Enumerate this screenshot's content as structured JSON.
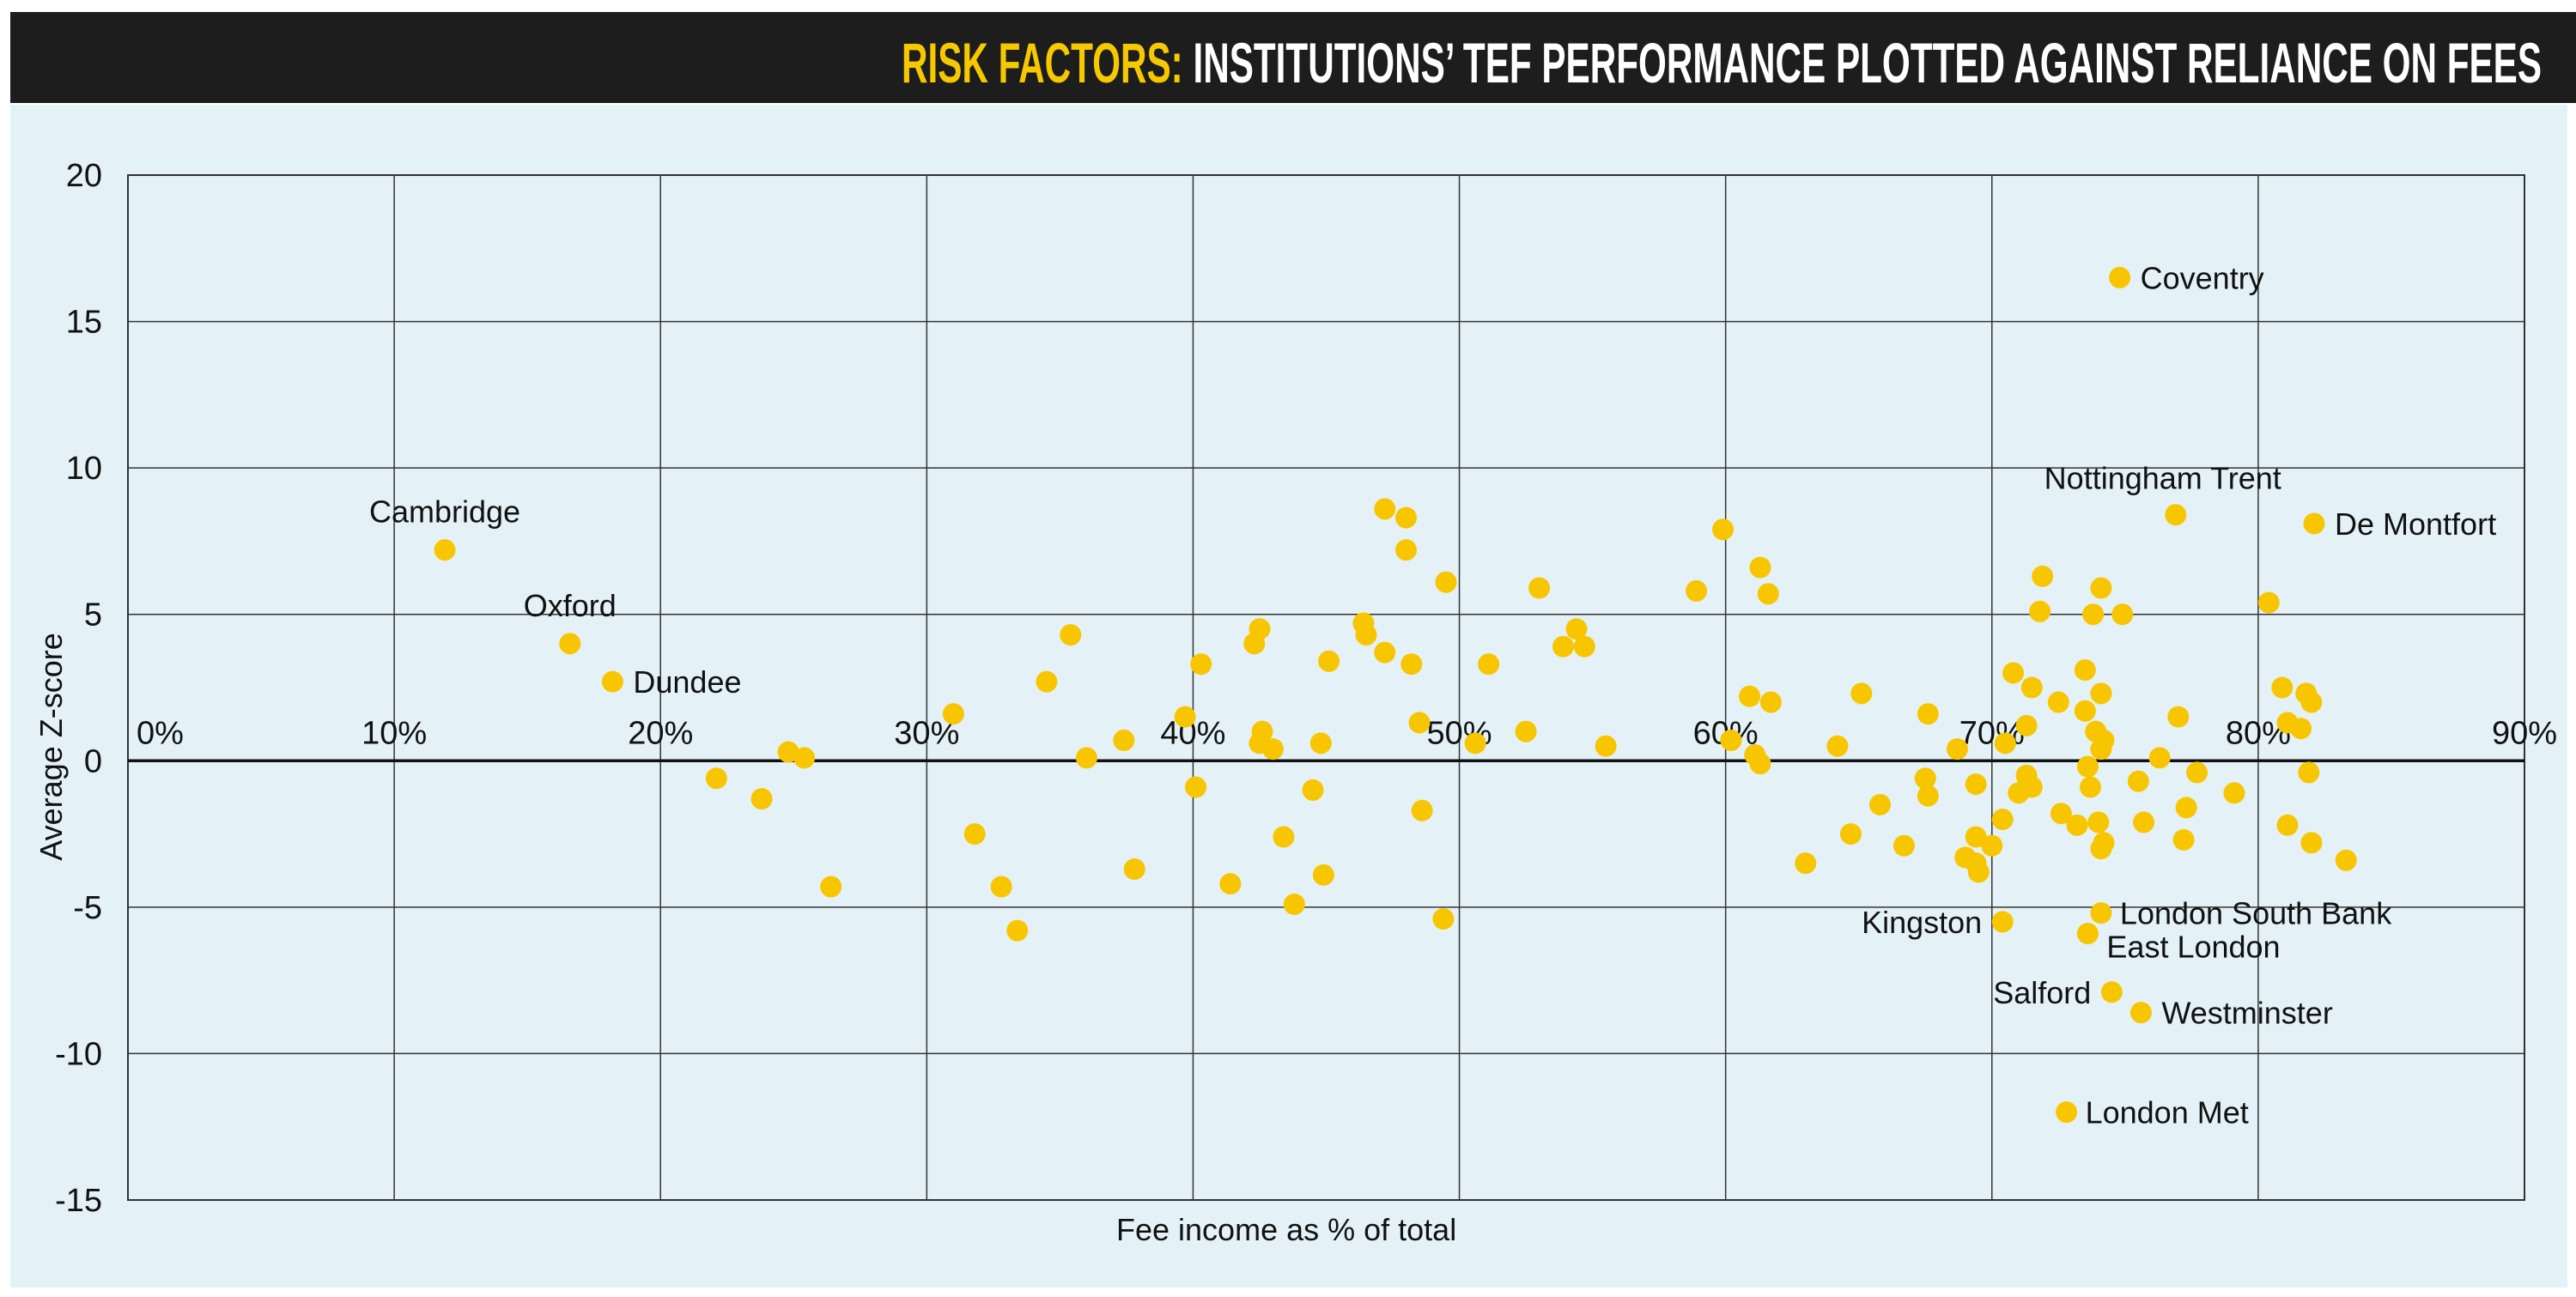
{
  "title": {
    "highlight": "RISK FACTORS:",
    "rest": "INSTITUTIONS’ TEF PERFORMANCE PLOTTED AGAINST RELIANCE ON FEES"
  },
  "colors": {
    "title_bg": "#1d1d1d",
    "highlight": "#f6c800",
    "panel": "#e4f2f7",
    "point": "#f7c600",
    "grid": "#333333"
  },
  "chart_data": {
    "type": "scatter",
    "title": "RISK FACTORS: INSTITUTIONS’ TEF PERFORMANCE PLOTTED AGAINST RELIANCE ON FEES",
    "xlabel": "Fee income as % of total",
    "ylabel": "Average Z-score",
    "xlim": [
      0,
      90
    ],
    "ylim": [
      -15,
      20
    ],
    "x_ticks": [
      "0%",
      "10%",
      "20%",
      "30%",
      "40%",
      "50%",
      "60%",
      "70%",
      "80%",
      "90%"
    ],
    "y_ticks": [
      "20",
      "15",
      "10",
      "5",
      "0",
      "-5",
      "-10",
      "-15"
    ],
    "grid": true,
    "labeled_points": [
      {
        "name": "Cambridge",
        "x": 11.9,
        "y": 7.2
      },
      {
        "name": "Oxford",
        "x": 16.6,
        "y": 4.0
      },
      {
        "name": "Dundee",
        "x": 18.2,
        "y": 2.7
      },
      {
        "name": "Coventry",
        "x": 74.8,
        "y": 16.5
      },
      {
        "name": "Nottingham Trent",
        "x": 76.9,
        "y": 8.4
      },
      {
        "name": "De Montfort",
        "x": 82.1,
        "y": 8.1
      },
      {
        "name": "Kingston",
        "x": 70.4,
        "y": -5.5
      },
      {
        "name": "London South Bank",
        "x": 74.1,
        "y": -5.2
      },
      {
        "name": "East London",
        "x": 73.6,
        "y": -5.9
      },
      {
        "name": "Salford",
        "x": 74.5,
        "y": -7.9
      },
      {
        "name": "Westminster",
        "x": 75.6,
        "y": -8.6
      },
      {
        "name": "London Met",
        "x": 72.8,
        "y": -12.0
      }
    ],
    "points": [
      [
        22.1,
        -0.6
      ],
      [
        23.8,
        -1.3
      ],
      [
        24.8,
        0.3
      ],
      [
        25.4,
        0.1
      ],
      [
        26.4,
        -4.3
      ],
      [
        31.0,
        1.6
      ],
      [
        31.8,
        -2.5
      ],
      [
        32.8,
        -4.3
      ],
      [
        33.4,
        -5.8
      ],
      [
        34.5,
        2.7
      ],
      [
        35.4,
        4.3
      ],
      [
        36.0,
        0.1
      ],
      [
        37.4,
        0.7
      ],
      [
        37.8,
        -3.7
      ],
      [
        39.7,
        1.5
      ],
      [
        40.1,
        -0.9
      ],
      [
        40.3,
        3.3
      ],
      [
        41.4,
        -4.2
      ],
      [
        42.3,
        4.0
      ],
      [
        42.5,
        4.5
      ],
      [
        42.6,
        1.0
      ],
      [
        42.5,
        0.6
      ],
      [
        43.0,
        0.4
      ],
      [
        43.4,
        -2.6
      ],
      [
        43.8,
        -4.9
      ],
      [
        44.5,
        -1.0
      ],
      [
        44.8,
        0.6
      ],
      [
        44.9,
        -3.9
      ],
      [
        45.1,
        3.4
      ],
      [
        46.4,
        4.7
      ],
      [
        46.5,
        4.3
      ],
      [
        47.2,
        8.6
      ],
      [
        47.2,
        3.7
      ],
      [
        48.0,
        7.2
      ],
      [
        48.0,
        8.3
      ],
      [
        48.2,
        3.3
      ],
      [
        48.5,
        1.3
      ],
      [
        48.6,
        -1.7
      ],
      [
        49.4,
        -5.4
      ],
      [
        49.5,
        6.1
      ],
      [
        50.6,
        0.6
      ],
      [
        51.1,
        3.3
      ],
      [
        52.5,
        1.0
      ],
      [
        53.0,
        5.9
      ],
      [
        53.9,
        3.9
      ],
      [
        54.4,
        4.5
      ],
      [
        54.7,
        3.9
      ],
      [
        55.5,
        0.5
      ],
      [
        58.9,
        5.8
      ],
      [
        59.9,
        7.9
      ],
      [
        60.2,
        0.7
      ],
      [
        60.9,
        2.2
      ],
      [
        61.1,
        0.2
      ],
      [
        61.3,
        6.6
      ],
      [
        61.3,
        -0.1
      ],
      [
        61.6,
        5.7
      ],
      [
        61.7,
        2.0
      ],
      [
        63.0,
        -3.5
      ],
      [
        64.2,
        0.5
      ],
      [
        64.7,
        -2.5
      ],
      [
        65.1,
        2.3
      ],
      [
        65.8,
        -1.5
      ],
      [
        66.7,
        -2.9
      ],
      [
        67.5,
        -0.6
      ],
      [
        67.6,
        -1.2
      ],
      [
        67.6,
        1.6
      ],
      [
        68.7,
        0.4
      ],
      [
        69.0,
        -3.3
      ],
      [
        69.4,
        -3.5
      ],
      [
        69.4,
        -2.6
      ],
      [
        69.4,
        -0.8
      ],
      [
        69.5,
        -3.8
      ],
      [
        70.0,
        -2.9
      ],
      [
        70.4,
        -2.0
      ],
      [
        70.5,
        0.6
      ],
      [
        70.8,
        3.0
      ],
      [
        71.0,
        -1.1
      ],
      [
        71.3,
        -0.5
      ],
      [
        71.3,
        1.2
      ],
      [
        71.5,
        2.5
      ],
      [
        71.5,
        -0.9
      ],
      [
        71.8,
        5.1
      ],
      [
        71.9,
        6.3
      ],
      [
        72.5,
        2.0
      ],
      [
        72.6,
        -1.8
      ],
      [
        73.2,
        -2.2
      ],
      [
        73.5,
        3.1
      ],
      [
        73.5,
        1.7
      ],
      [
        73.6,
        -0.2
      ],
      [
        73.7,
        -0.9
      ],
      [
        73.8,
        5.0
      ],
      [
        73.9,
        1.0
      ],
      [
        74.0,
        -2.1
      ],
      [
        74.1,
        2.3
      ],
      [
        74.1,
        0.4
      ],
      [
        74.2,
        0.7
      ],
      [
        74.1,
        5.9
      ],
      [
        74.1,
        -3.0
      ],
      [
        74.2,
        -2.8
      ],
      [
        74.9,
        5.0
      ],
      [
        75.5,
        -0.7
      ],
      [
        75.7,
        -2.1
      ],
      [
        76.3,
        0.1
      ],
      [
        77.0,
        1.5
      ],
      [
        77.2,
        -2.7
      ],
      [
        77.3,
        -1.6
      ],
      [
        77.7,
        -0.4
      ],
      [
        79.1,
        -1.1
      ],
      [
        80.4,
        5.4
      ],
      [
        80.9,
        2.5
      ],
      [
        81.1,
        1.3
      ],
      [
        81.1,
        -2.2
      ],
      [
        81.6,
        1.1
      ],
      [
        81.8,
        2.3
      ],
      [
        82.0,
        2.0
      ],
      [
        81.9,
        -0.4
      ],
      [
        82.0,
        -2.8
      ],
      [
        83.3,
        -3.4
      ]
    ]
  }
}
